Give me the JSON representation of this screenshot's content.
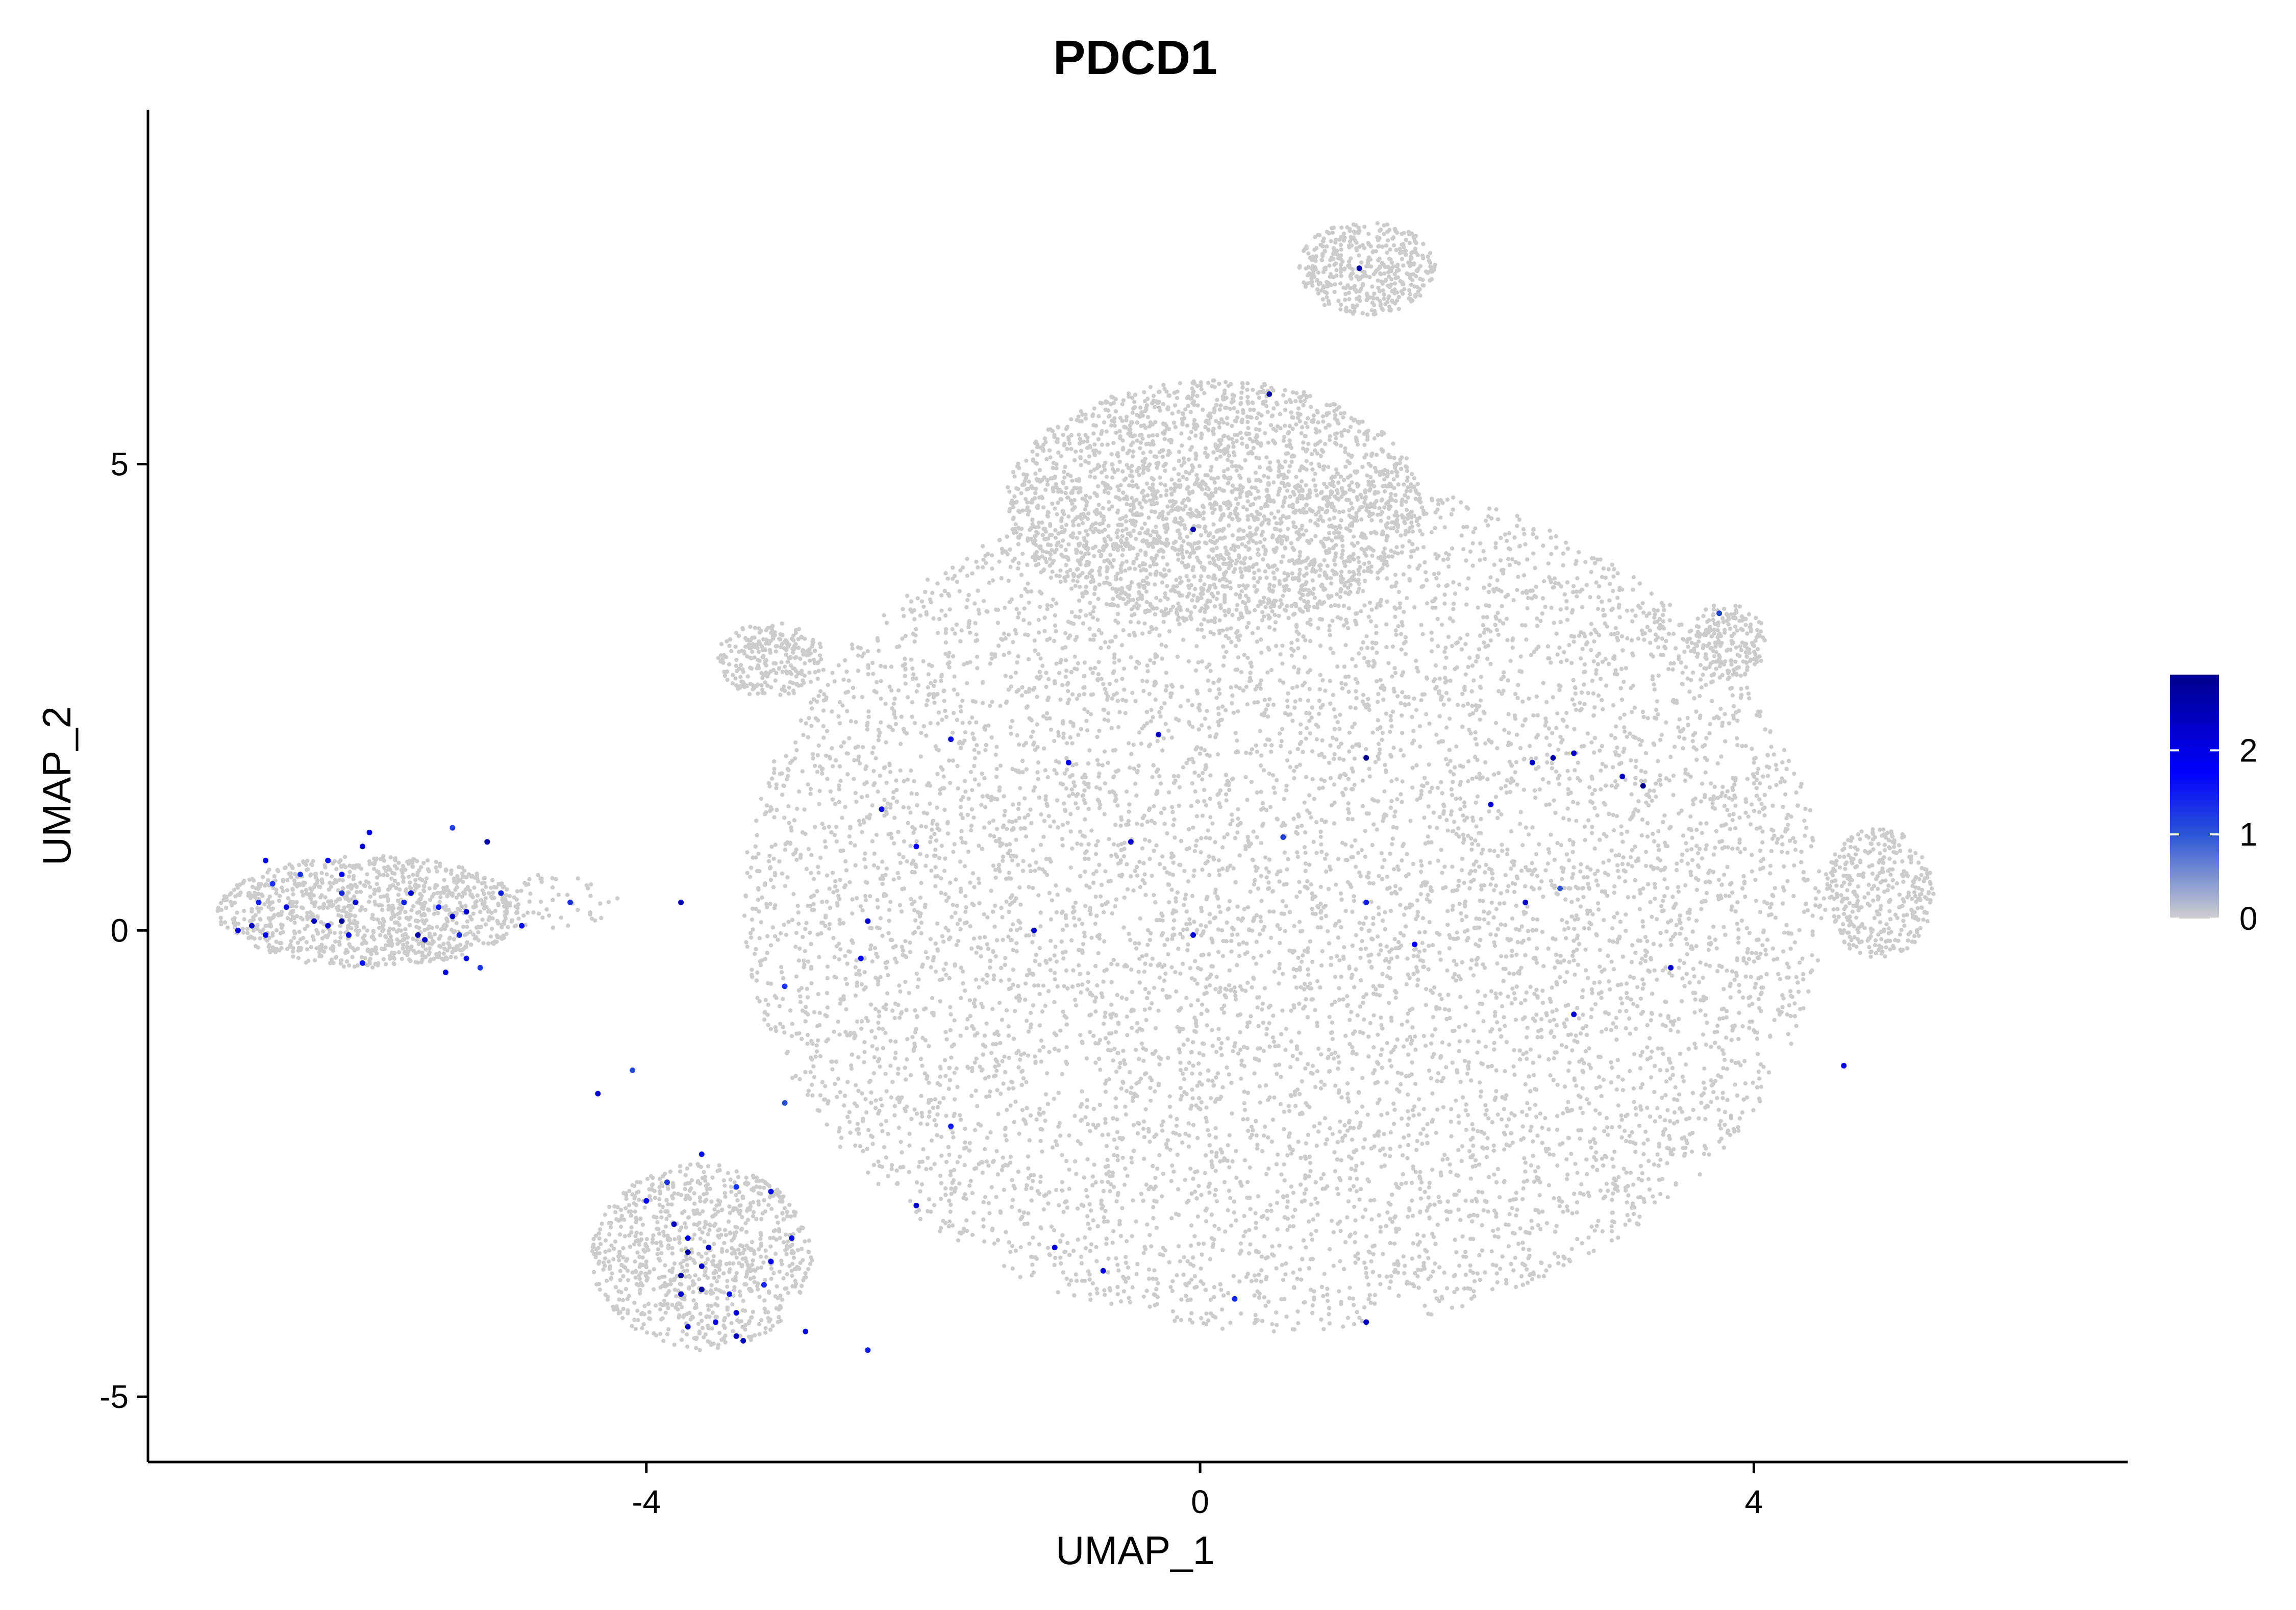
{
  "chart_data": {
    "type": "scatter",
    "title": "PDCD1",
    "xlabel": "UMAP_1",
    "ylabel": "UMAP_2",
    "xlim": [
      -7.6,
      6.7
    ],
    "ylim": [
      -5.7,
      8.8
    ],
    "x_ticks": [
      -4,
      0,
      4
    ],
    "y_ticks": [
      -5,
      0,
      5
    ],
    "x_tick_labels": [
      "-4",
      "0",
      "4"
    ],
    "y_tick_labels": [
      "-5",
      "0",
      "5"
    ],
    "grid": false,
    "legend": {
      "placement": "right",
      "type": "colorbar",
      "min": 0,
      "max": 2.9,
      "ticks": [
        0,
        1,
        2
      ],
      "tick_labels": [
        "0",
        "1",
        "2"
      ],
      "colors": {
        "low": "#cfcfcf",
        "mid": "#0000ff",
        "high": "#00008b"
      }
    },
    "background_point_color": "#cccccc",
    "background_regions_note_values": [
      {
        "cx": 0.6,
        "cy": 0.3,
        "rx": 3.9,
        "ry": 4.6,
        "n": 9000
      },
      {
        "cx": 0.1,
        "cy": 4.6,
        "rx": 1.5,
        "ry": 1.3,
        "n": 2200
      },
      {
        "cx": 1.2,
        "cy": 7.1,
        "rx": 0.5,
        "ry": 0.5,
        "n": 450
      },
      {
        "cx": -6.0,
        "cy": 0.2,
        "rx": 1.1,
        "ry": 0.6,
        "n": 1100
      },
      {
        "cx": -3.6,
        "cy": -3.5,
        "rx": 0.8,
        "ry": 1.0,
        "n": 900
      },
      {
        "cx": -3.1,
        "cy": 2.9,
        "rx": 0.4,
        "ry": 0.4,
        "n": 260
      },
      {
        "cx": 3.8,
        "cy": 3.1,
        "rx": 0.3,
        "ry": 0.4,
        "n": 200
      },
      {
        "cx": 4.9,
        "cy": 0.4,
        "rx": 0.4,
        "ry": 0.7,
        "n": 380
      },
      {
        "cx": -4.7,
        "cy": 0.3,
        "rx": 0.5,
        "ry": 0.3,
        "n": 60
      }
    ],
    "expressing_cells": [
      {
        "x": 1.15,
        "y": 7.1,
        "v": 2.5
      },
      {
        "x": 0.5,
        "y": 5.75,
        "v": 2.4
      },
      {
        "x": -0.05,
        "y": 4.3,
        "v": 2.5
      },
      {
        "x": 3.75,
        "y": 3.4,
        "v": 1.2
      },
      {
        "x": -1.8,
        "y": 2.05,
        "v": 2.0
      },
      {
        "x": -0.3,
        "y": 2.1,
        "v": 2.3
      },
      {
        "x": -0.95,
        "y": 1.8,
        "v": 2.0
      },
      {
        "x": 1.2,
        "y": 1.85,
        "v": 2.8
      },
      {
        "x": 2.4,
        "y": 1.8,
        "v": 2.3
      },
      {
        "x": 2.55,
        "y": 1.85,
        "v": 2.5
      },
      {
        "x": 2.7,
        "y": 1.9,
        "v": 2.2
      },
      {
        "x": 3.05,
        "y": 1.65,
        "v": 2.4
      },
      {
        "x": 3.2,
        "y": 1.55,
        "v": 2.9
      },
      {
        "x": 2.1,
        "y": 1.35,
        "v": 2.3
      },
      {
        "x": -2.3,
        "y": 1.3,
        "v": 2.0
      },
      {
        "x": -0.5,
        "y": 0.95,
        "v": 2.4
      },
      {
        "x": -2.05,
        "y": 0.9,
        "v": 1.9
      },
      {
        "x": 0.6,
        "y": 1.0,
        "v": 1.2
      },
      {
        "x": 1.2,
        "y": 0.3,
        "v": 1.5
      },
      {
        "x": 2.35,
        "y": 0.3,
        "v": 2.3
      },
      {
        "x": 2.6,
        "y": 0.45,
        "v": 1.0
      },
      {
        "x": -1.2,
        "y": 0.0,
        "v": 2.4
      },
      {
        "x": -0.05,
        "y": -0.05,
        "v": 2.0
      },
      {
        "x": 1.55,
        "y": -0.15,
        "v": 1.8
      },
      {
        "x": 3.4,
        "y": -0.4,
        "v": 2.2
      },
      {
        "x": -2.45,
        "y": -0.3,
        "v": 1.7
      },
      {
        "x": -2.4,
        "y": 0.1,
        "v": 2.1
      },
      {
        "x": -3.0,
        "y": -0.6,
        "v": 1.3
      },
      {
        "x": 2.7,
        "y": -0.9,
        "v": 2.1
      },
      {
        "x": 4.65,
        "y": -1.45,
        "v": 1.9
      },
      {
        "x": -4.35,
        "y": -1.75,
        "v": 2.2
      },
      {
        "x": -4.1,
        "y": -1.5,
        "v": 1.1
      },
      {
        "x": -3.0,
        "y": -1.85,
        "v": 1.0
      },
      {
        "x": -1.8,
        "y": -2.1,
        "v": 1.5
      },
      {
        "x": -2.05,
        "y": -2.95,
        "v": 2.3
      },
      {
        "x": -1.05,
        "y": -3.4,
        "v": 2.0
      },
      {
        "x": -0.7,
        "y": -3.65,
        "v": 2.1
      },
      {
        "x": 0.25,
        "y": -3.95,
        "v": 1.4
      },
      {
        "x": 1.2,
        "y": -4.2,
        "v": 2.3
      },
      {
        "x": -2.4,
        "y": -4.5,
        "v": 1.5
      },
      {
        "x": -2.85,
        "y": -4.3,
        "v": 2.0
      },
      {
        "x": -3.3,
        "y": -4.4,
        "v": 2.2
      },
      {
        "x": -3.35,
        "y": -4.35,
        "v": 2.5
      },
      {
        "x": -3.5,
        "y": -4.2,
        "v": 1.8
      },
      {
        "x": -3.7,
        "y": -4.25,
        "v": 2.4
      },
      {
        "x": -3.75,
        "y": -3.9,
        "v": 2.1
      },
      {
        "x": -3.6,
        "y": -3.85,
        "v": 2.6
      },
      {
        "x": -3.75,
        "y": -3.7,
        "v": 2.7
      },
      {
        "x": -3.6,
        "y": -3.6,
        "v": 2.3
      },
      {
        "x": -3.7,
        "y": -3.45,
        "v": 2.6
      },
      {
        "x": -3.55,
        "y": -3.4,
        "v": 2.4
      },
      {
        "x": -3.4,
        "y": -3.9,
        "v": 1.6
      },
      {
        "x": -3.35,
        "y": -4.1,
        "v": 2.2
      },
      {
        "x": -3.15,
        "y": -3.8,
        "v": 1.4
      },
      {
        "x": -2.95,
        "y": -3.3,
        "v": 1.7
      },
      {
        "x": -3.1,
        "y": -3.55,
        "v": 2.0
      },
      {
        "x": -3.7,
        "y": -3.3,
        "v": 1.9
      },
      {
        "x": -3.8,
        "y": -3.15,
        "v": 2.4
      },
      {
        "x": -3.85,
        "y": -2.7,
        "v": 1.3
      },
      {
        "x": -3.6,
        "y": -2.4,
        "v": 1.6
      },
      {
        "x": -4.0,
        "y": -2.9,
        "v": 1.9
      },
      {
        "x": -3.35,
        "y": -2.75,
        "v": 1.3
      },
      {
        "x": -3.1,
        "y": -2.8,
        "v": 2.0
      },
      {
        "x": -6.95,
        "y": 0.0,
        "v": 2.2
      },
      {
        "x": -6.85,
        "y": 0.05,
        "v": 2.4
      },
      {
        "x": -6.75,
        "y": -0.05,
        "v": 1.8
      },
      {
        "x": -6.8,
        "y": 0.3,
        "v": 1.5
      },
      {
        "x": -6.7,
        "y": 0.5,
        "v": 1.3
      },
      {
        "x": -6.75,
        "y": 0.75,
        "v": 1.9
      },
      {
        "x": -6.6,
        "y": 0.25,
        "v": 2.1
      },
      {
        "x": -6.5,
        "y": 0.6,
        "v": 1.3
      },
      {
        "x": -6.4,
        "y": 0.1,
        "v": 2.5
      },
      {
        "x": -6.3,
        "y": 0.05,
        "v": 2.2
      },
      {
        "x": -6.2,
        "y": 0.1,
        "v": 2.6
      },
      {
        "x": -6.15,
        "y": -0.05,
        "v": 2.0
      },
      {
        "x": -6.3,
        "y": 0.75,
        "v": 1.6
      },
      {
        "x": -6.2,
        "y": 0.6,
        "v": 1.8
      },
      {
        "x": -6.1,
        "y": 0.3,
        "v": 2.2
      },
      {
        "x": -6.2,
        "y": 0.4,
        "v": 1.4
      },
      {
        "x": -6.05,
        "y": 0.9,
        "v": 2.3
      },
      {
        "x": -6.0,
        "y": 1.05,
        "v": 2.0
      },
      {
        "x": -6.05,
        "y": -0.35,
        "v": 1.6
      },
      {
        "x": -5.75,
        "y": 0.3,
        "v": 1.5
      },
      {
        "x": -5.7,
        "y": 0.4,
        "v": 2.1
      },
      {
        "x": -5.65,
        "y": -0.05,
        "v": 2.6
      },
      {
        "x": -5.6,
        "y": -0.1,
        "v": 2.3
      },
      {
        "x": -5.45,
        "y": -0.45,
        "v": 2.0
      },
      {
        "x": -5.5,
        "y": 0.25,
        "v": 1.6
      },
      {
        "x": -5.4,
        "y": 0.15,
        "v": 2.4
      },
      {
        "x": -5.3,
        "y": -0.3,
        "v": 1.9
      },
      {
        "x": -5.35,
        "y": -0.05,
        "v": 1.4
      },
      {
        "x": -5.3,
        "y": 0.2,
        "v": 2.2
      },
      {
        "x": -5.2,
        "y": -0.4,
        "v": 1.3
      },
      {
        "x": -5.15,
        "y": 0.95,
        "v": 2.5
      },
      {
        "x": -5.4,
        "y": 1.1,
        "v": 1.2
      },
      {
        "x": -5.05,
        "y": 0.4,
        "v": 1.5
      },
      {
        "x": -4.9,
        "y": 0.05,
        "v": 1.7
      },
      {
        "x": -4.55,
        "y": 0.3,
        "v": 1.3
      },
      {
        "x": -3.75,
        "y": 0.3,
        "v": 2.3
      }
    ]
  }
}
